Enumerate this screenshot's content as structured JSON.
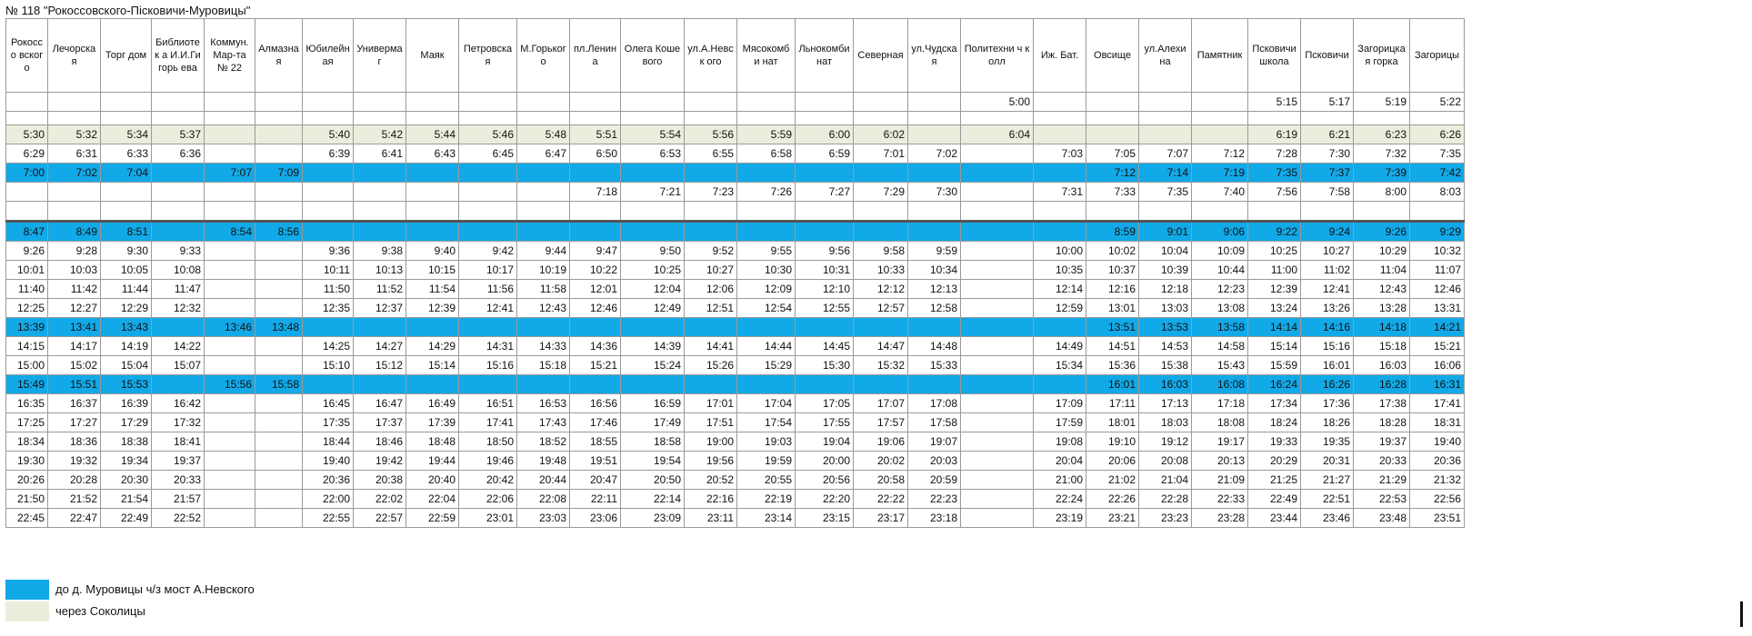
{
  "title": "№ 118 \"Рокоссовского-Пісковичи-Муровицы\"",
  "columns": [
    "Рокоссо вского",
    "Лечорская",
    "Торг дом",
    "Библиотек а И.И.Гигорь ева",
    "Коммун. Мар-та № 22",
    "Алмазна я",
    "Юбилейная",
    "Универмаг",
    "Маяк",
    "Петровская",
    "М.Горького",
    "пл.Ленина",
    "Олега Кошевого",
    "ул.А.Невск ого",
    "Мясокомби нат",
    "Льнокомби нат",
    "Северная",
    "ул.Чудская",
    "Политехни ч колл",
    "Иж. Бат.",
    "Овсище",
    "ул.Алехина",
    "Памятник",
    "Псковичи школа",
    "Псковичи",
    "Загорицкая горка",
    "Загорицы"
  ],
  "rows": [
    {
      "style": "plain",
      "cells": [
        "",
        "",
        "",
        "",
        "",
        "",
        "",
        "",
        "",
        "",
        "",
        "",
        "",
        "",
        "",
        "",
        "",
        "",
        "5:00",
        "",
        "",
        "",
        "",
        "5:15",
        "5:17",
        "5:19",
        "5:22"
      ]
    },
    {
      "style": "gap",
      "cells": [
        "",
        "",
        "",
        "",
        "",
        "",
        "",
        "",
        "",
        "",
        "",
        "",
        "",
        "",
        "",
        "",
        "",
        "",
        "",
        "",
        "",
        "",
        "",
        "",
        "",
        "",
        ""
      ]
    },
    {
      "style": "beige",
      "cells": [
        "5:30",
        "5:32",
        "5:34",
        "5:37",
        "",
        "",
        "5:40",
        "5:42",
        "5:44",
        "5:46",
        "5:48",
        "5:51",
        "5:54",
        "5:56",
        "5:59",
        "6:00",
        "6:02",
        "",
        "6:04",
        "",
        "",
        "",
        "",
        "6:19",
        "6:21",
        "6:23",
        "6:26"
      ]
    },
    {
      "style": "plain",
      "cells": [
        "6:29",
        "6:31",
        "6:33",
        "6:36",
        "",
        "",
        "6:39",
        "6:41",
        "6:43",
        "6:45",
        "6:47",
        "6:50",
        "6:53",
        "6:55",
        "6:58",
        "6:59",
        "7:01",
        "7:02",
        "",
        "7:03",
        "7:05",
        "7:07",
        "7:12",
        "7:28",
        "7:30",
        "7:32",
        "7:35"
      ]
    },
    {
      "style": "blue",
      "cells": [
        "7:00",
        "7:02",
        "7:04",
        "",
        "7:07",
        "7:09",
        "",
        "",
        "",
        "",
        "",
        "",
        "",
        "",
        "",
        "",
        "",
        "",
        "",
        "",
        "7:12",
        "7:14",
        "7:19",
        "7:35",
        "7:37",
        "7:39",
        "7:42"
      ]
    },
    {
      "style": "plain",
      "cells": [
        "",
        "",
        "",
        "",
        "",
        "",
        "",
        "",
        "",
        "",
        "",
        "7:18",
        "7:21",
        "7:23",
        "7:26",
        "7:27",
        "7:29",
        "7:30",
        "",
        "7:31",
        "7:33",
        "7:35",
        "7:40",
        "7:56",
        "7:58",
        "8:00",
        "8:03"
      ]
    },
    {
      "style": "thick",
      "cells": [
        "",
        "",
        "",
        "",
        "",
        "",
        "",
        "",
        "",
        "",
        "",
        "",
        "",
        "",
        "",
        "",
        "",
        "",
        "",
        "",
        "",
        "",
        "",
        "",
        "",
        "",
        ""
      ]
    },
    {
      "style": "blue",
      "cells": [
        "8:47",
        "8:49",
        "8:51",
        "",
        "8:54",
        "8:56",
        "",
        "",
        "",
        "",
        "",
        "",
        "",
        "",
        "",
        "",
        "",
        "",
        "",
        "",
        "8:59",
        "9:01",
        "9:06",
        "9:22",
        "9:24",
        "9:26",
        "9:29"
      ]
    },
    {
      "style": "plain",
      "cells": [
        "9:26",
        "9:28",
        "9:30",
        "9:33",
        "",
        "",
        "9:36",
        "9:38",
        "9:40",
        "9:42",
        "9:44",
        "9:47",
        "9:50",
        "9:52",
        "9:55",
        "9:56",
        "9:58",
        "9:59",
        "",
        "10:00",
        "10:02",
        "10:04",
        "10:09",
        "10:25",
        "10:27",
        "10:29",
        "10:32"
      ]
    },
    {
      "style": "plain",
      "cells": [
        "10:01",
        "10:03",
        "10:05",
        "10:08",
        "",
        "",
        "10:11",
        "10:13",
        "10:15",
        "10:17",
        "10:19",
        "10:22",
        "10:25",
        "10:27",
        "10:30",
        "10:31",
        "10:33",
        "10:34",
        "",
        "10:35",
        "10:37",
        "10:39",
        "10:44",
        "11:00",
        "11:02",
        "11:04",
        "11:07"
      ]
    },
    {
      "style": "plain",
      "cells": [
        "11:40",
        "11:42",
        "11:44",
        "11:47",
        "",
        "",
        "11:50",
        "11:52",
        "11:54",
        "11:56",
        "11:58",
        "12:01",
        "12:04",
        "12:06",
        "12:09",
        "12:10",
        "12:12",
        "12:13",
        "",
        "12:14",
        "12:16",
        "12:18",
        "12:23",
        "12:39",
        "12:41",
        "12:43",
        "12:46"
      ]
    },
    {
      "style": "plain",
      "cells": [
        "12:25",
        "12:27",
        "12:29",
        "12:32",
        "",
        "",
        "12:35",
        "12:37",
        "12:39",
        "12:41",
        "12:43",
        "12:46",
        "12:49",
        "12:51",
        "12:54",
        "12:55",
        "12:57",
        "12:58",
        "",
        "12:59",
        "13:01",
        "13:03",
        "13:08",
        "13:24",
        "13:26",
        "13:28",
        "13:31"
      ]
    },
    {
      "style": "blue",
      "cells": [
        "13:39",
        "13:41",
        "13:43",
        "",
        "13:46",
        "13:48",
        "",
        "",
        "",
        "",
        "",
        "",
        "",
        "",
        "",
        "",
        "",
        "",
        "",
        "",
        "13:51",
        "13:53",
        "13:58",
        "14:14",
        "14:16",
        "14:18",
        "14:21"
      ]
    },
    {
      "style": "plain",
      "cells": [
        "14:15",
        "14:17",
        "14:19",
        "14:22",
        "",
        "",
        "14:25",
        "14:27",
        "14:29",
        "14:31",
        "14:33",
        "14:36",
        "14:39",
        "14:41",
        "14:44",
        "14:45",
        "14:47",
        "14:48",
        "",
        "14:49",
        "14:51",
        "14:53",
        "14:58",
        "15:14",
        "15:16",
        "15:18",
        "15:21"
      ]
    },
    {
      "style": "plain",
      "cells": [
        "15:00",
        "15:02",
        "15:04",
        "15:07",
        "",
        "",
        "15:10",
        "15:12",
        "15:14",
        "15:16",
        "15:18",
        "15:21",
        "15:24",
        "15:26",
        "15:29",
        "15:30",
        "15:32",
        "15:33",
        "",
        "15:34",
        "15:36",
        "15:38",
        "15:43",
        "15:59",
        "16:01",
        "16:03",
        "16:06"
      ]
    },
    {
      "style": "blue",
      "cells": [
        "15:49",
        "15:51",
        "15:53",
        "",
        "15:56",
        "15:58",
        "",
        "",
        "",
        "",
        "",
        "",
        "",
        "",
        "",
        "",
        "",
        "",
        "",
        "",
        "16:01",
        "16:03",
        "16:08",
        "16:24",
        "16:26",
        "16:28",
        "16:31"
      ]
    },
    {
      "style": "plain",
      "cells": [
        "16:35",
        "16:37",
        "16:39",
        "16:42",
        "",
        "",
        "16:45",
        "16:47",
        "16:49",
        "16:51",
        "16:53",
        "16:56",
        "16:59",
        "17:01",
        "17:04",
        "17:05",
        "17:07",
        "17:08",
        "",
        "17:09",
        "17:11",
        "17:13",
        "17:18",
        "17:34",
        "17:36",
        "17:38",
        "17:41"
      ]
    },
    {
      "style": "plain",
      "cells": [
        "17:25",
        "17:27",
        "17:29",
        "17:32",
        "",
        "",
        "17:35",
        "17:37",
        "17:39",
        "17:41",
        "17:43",
        "17:46",
        "17:49",
        "17:51",
        "17:54",
        "17:55",
        "17:57",
        "17:58",
        "",
        "17:59",
        "18:01",
        "18:03",
        "18:08",
        "18:24",
        "18:26",
        "18:28",
        "18:31"
      ]
    },
    {
      "style": "plain",
      "cells": [
        "18:34",
        "18:36",
        "18:38",
        "18:41",
        "",
        "",
        "18:44",
        "18:46",
        "18:48",
        "18:50",
        "18:52",
        "18:55",
        "18:58",
        "19:00",
        "19:03",
        "19:04",
        "19:06",
        "19:07",
        "",
        "19:08",
        "19:10",
        "19:12",
        "19:17",
        "19:33",
        "19:35",
        "19:37",
        "19:40"
      ]
    },
    {
      "style": "plain",
      "cells": [
        "19:30",
        "19:32",
        "19:34",
        "19:37",
        "",
        "",
        "19:40",
        "19:42",
        "19:44",
        "19:46",
        "19:48",
        "19:51",
        "19:54",
        "19:56",
        "19:59",
        "20:00",
        "20:02",
        "20:03",
        "",
        "20:04",
        "20:06",
        "20:08",
        "20:13",
        "20:29",
        "20:31",
        "20:33",
        "20:36"
      ]
    },
    {
      "style": "plain",
      "cells": [
        "20:26",
        "20:28",
        "20:30",
        "20:33",
        "",
        "",
        "20:36",
        "20:38",
        "20:40",
        "20:42",
        "20:44",
        "20:47",
        "20:50",
        "20:52",
        "20:55",
        "20:56",
        "20:58",
        "20:59",
        "",
        "21:00",
        "21:02",
        "21:04",
        "21:09",
        "21:25",
        "21:27",
        "21:29",
        "21:32"
      ]
    },
    {
      "style": "plain",
      "cells": [
        "21:50",
        "21:52",
        "21:54",
        "21:57",
        "",
        "",
        "22:00",
        "22:02",
        "22:04",
        "22:06",
        "22:08",
        "22:11",
        "22:14",
        "22:16",
        "22:19",
        "22:20",
        "22:22",
        "22:23",
        "",
        "22:24",
        "22:26",
        "22:28",
        "22:33",
        "22:49",
        "22:51",
        "22:53",
        "22:56"
      ]
    },
    {
      "style": "plain",
      "cells": [
        "22:45",
        "22:47",
        "22:49",
        "22:52",
        "",
        "",
        "22:55",
        "22:57",
        "22:59",
        "23:01",
        "23:03",
        "23:06",
        "23:09",
        "23:11",
        "23:14",
        "23:15",
        "23:17",
        "23:18",
        "",
        "23:19",
        "23:21",
        "23:23",
        "23:28",
        "23:44",
        "23:46",
        "23:48",
        "23:51"
      ]
    }
  ],
  "legend": [
    {
      "color": "#12a9e8",
      "text": "до д. Муровицы ч/з мост А.Невского"
    },
    {
      "color": "#ebeedc",
      "text": "через Соколицы"
    }
  ]
}
